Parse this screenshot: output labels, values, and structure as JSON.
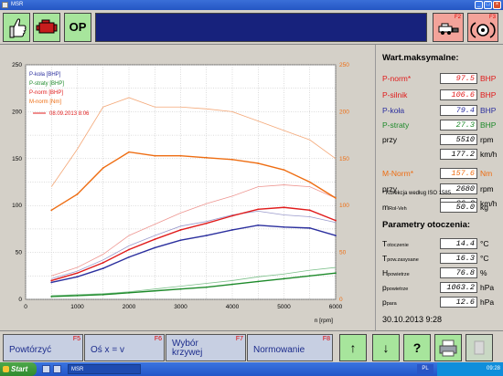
{
  "window": {
    "title": "MSR"
  },
  "toolbar": {
    "op_label": "OP",
    "f2_key": "F2",
    "f3_key": "F3"
  },
  "icons": {
    "thumb": "thumbs-up-icon",
    "engine": "engine-icon",
    "car": "car-icon",
    "brake": "brake-disc-icon"
  },
  "chart_data": {
    "type": "line",
    "x": [
      500,
      1000,
      1500,
      2000,
      2500,
      3000,
      3500,
      4000,
      4500,
      5000,
      5500,
      6000
    ],
    "xlim": [
      0,
      6000
    ],
    "ylim_left": [
      0,
      250
    ],
    "ylim_right": [
      0,
      250
    ],
    "xlabel": "n [rpm]",
    "xticks": [
      "0",
      "1000",
      "2000",
      "3000",
      "4000",
      "5000",
      "6000"
    ],
    "yticks_left": [
      "0",
      "50",
      "100",
      "150",
      "200",
      "250"
    ],
    "yticks_right": [
      "0",
      "50",
      "100",
      "150",
      "200",
      "250"
    ],
    "legend": {
      "entries": [
        "P-koła [BHP]",
        "P-straty [BHP]",
        "P-norm [BHP]",
        "M-norm [Nm]"
      ],
      "date_entry": "08.09.2013 8:06",
      "placement": "top-left"
    },
    "grid": true,
    "series": [
      {
        "name": "P-koła [BHP]",
        "color": "#2b2f9e",
        "axis": "left",
        "x": [
          500,
          1000,
          1500,
          2000,
          2500,
          3000,
          3500,
          4000,
          4500,
          5000,
          5500,
          6000
        ],
        "values": [
          18,
          24,
          33,
          45,
          55,
          63,
          68,
          74,
          79,
          77,
          76,
          68
        ]
      },
      {
        "name": "P-straty [BHP]",
        "color": "#1d8a2a",
        "axis": "left",
        "x": [
          500,
          1000,
          1500,
          2000,
          2500,
          3000,
          3500,
          4000,
          4500,
          5000,
          5500,
          6000
        ],
        "values": [
          3,
          4,
          5,
          7,
          9,
          11,
          13,
          16,
          19,
          22,
          25,
          28
        ]
      },
      {
        "name": "P-norm [BHP]",
        "color": "#e01b1b",
        "axis": "left",
        "x": [
          500,
          1000,
          1500,
          2000,
          2500,
          3000,
          3500,
          4000,
          4500,
          5000,
          5500,
          6000
        ],
        "values": [
          20,
          28,
          39,
          53,
          64,
          74,
          81,
          89,
          96,
          98,
          95,
          84
        ]
      },
      {
        "name": "M-norm [Nm]",
        "color": "#ee6d12",
        "axis": "right",
        "x": [
          500,
          1000,
          1500,
          2000,
          2500,
          3000,
          3500,
          4000,
          4500,
          5000,
          5500,
          6000
        ],
        "values": [
          95,
          112,
          140,
          157,
          153,
          153,
          151,
          149,
          145,
          138,
          125,
          108
        ]
      }
    ],
    "faint_series": [
      {
        "color": "#f4a878",
        "values": [
          120,
          160,
          205,
          215,
          205,
          205,
          203,
          200,
          190,
          180,
          170,
          150
        ]
      },
      {
        "color": "#ee9590",
        "values": [
          25,
          34,
          48,
          68,
          80,
          92,
          102,
          110,
          120,
          122,
          120,
          108
        ]
      },
      {
        "color": "#9a9acc",
        "values": [
          22,
          30,
          42,
          57,
          68,
          78,
          83,
          90,
          94,
          90,
          88,
          82
        ]
      },
      {
        "color": "#7cc08a",
        "values": [
          4,
          5,
          6,
          8,
          11,
          14,
          17,
          20,
          24,
          27,
          31,
          34
        ]
      }
    ]
  },
  "panel": {
    "max_heading": "Wart.maksymalne:",
    "rows": [
      {
        "label": "P-norm*",
        "value": "97.5",
        "unit": "BHP",
        "color": "#e01b1b"
      },
      {
        "label": "P-silnik",
        "value": "106.6",
        "unit": "BHP",
        "color": "#e01b1b"
      },
      {
        "label": "P-koła",
        "value": "79.4",
        "unit": "BHP",
        "color": "#2b2f9e"
      },
      {
        "label": "P-straty",
        "value": "27.3",
        "unit": "BHP",
        "color": "#1d8a2a"
      },
      {
        "label": "przy",
        "value": "5510",
        "unit": "rpm",
        "color": "#000000"
      },
      {
        "label": "",
        "value": "177.2",
        "unit": "km/h",
        "color": "#000000"
      },
      {
        "label": "M-Norm*",
        "value": "157.6",
        "unit": "Nm",
        "color": "#ee6d12"
      },
      {
        "label": "przy",
        "value": "2680",
        "unit": "rpm",
        "color": "#000000"
      },
      {
        "label": "",
        "value": "86.3",
        "unit": "km/h",
        "color": "#000000"
      }
    ],
    "correction_note": "* Korekcja według ISO 1585",
    "mass": {
      "label": "m",
      "sub": "Rol-Veh",
      "value": "50.0",
      "unit": "kg"
    },
    "env_heading": "Parametry otoczenia:",
    "env_rows": [
      {
        "label": "T",
        "sub": "otoczenie",
        "value": "14.4",
        "unit": "°C"
      },
      {
        "label": "T",
        "sub": "pow.zasysane",
        "value": "16.3",
        "unit": "°C"
      },
      {
        "label": "H",
        "sub": "powietrze",
        "value": "76.8",
        "unit": "%"
      },
      {
        "label": "p",
        "sub": "powietrze",
        "value": "1063.2",
        "unit": "hPa"
      },
      {
        "label": "p",
        "sub": "para",
        "value": "12.6",
        "unit": "hPa"
      }
    ],
    "datetime": "30.10.2013  9:28"
  },
  "bottom": {
    "f5": {
      "label": "Powtórzyć",
      "key": "F5"
    },
    "f6": {
      "label": "Oś x = v",
      "key": "F6"
    },
    "f7": {
      "label": "Wybór krzywej",
      "key": "F7"
    },
    "f8": {
      "label": "Normowanie",
      "key": "F8"
    },
    "up_glyph": "↑",
    "down_glyph": "↓",
    "help_glyph": "?"
  },
  "taskbar": {
    "start_label": "Start",
    "task_label": "MSR",
    "lang": "PL",
    "clock": "09:28"
  }
}
